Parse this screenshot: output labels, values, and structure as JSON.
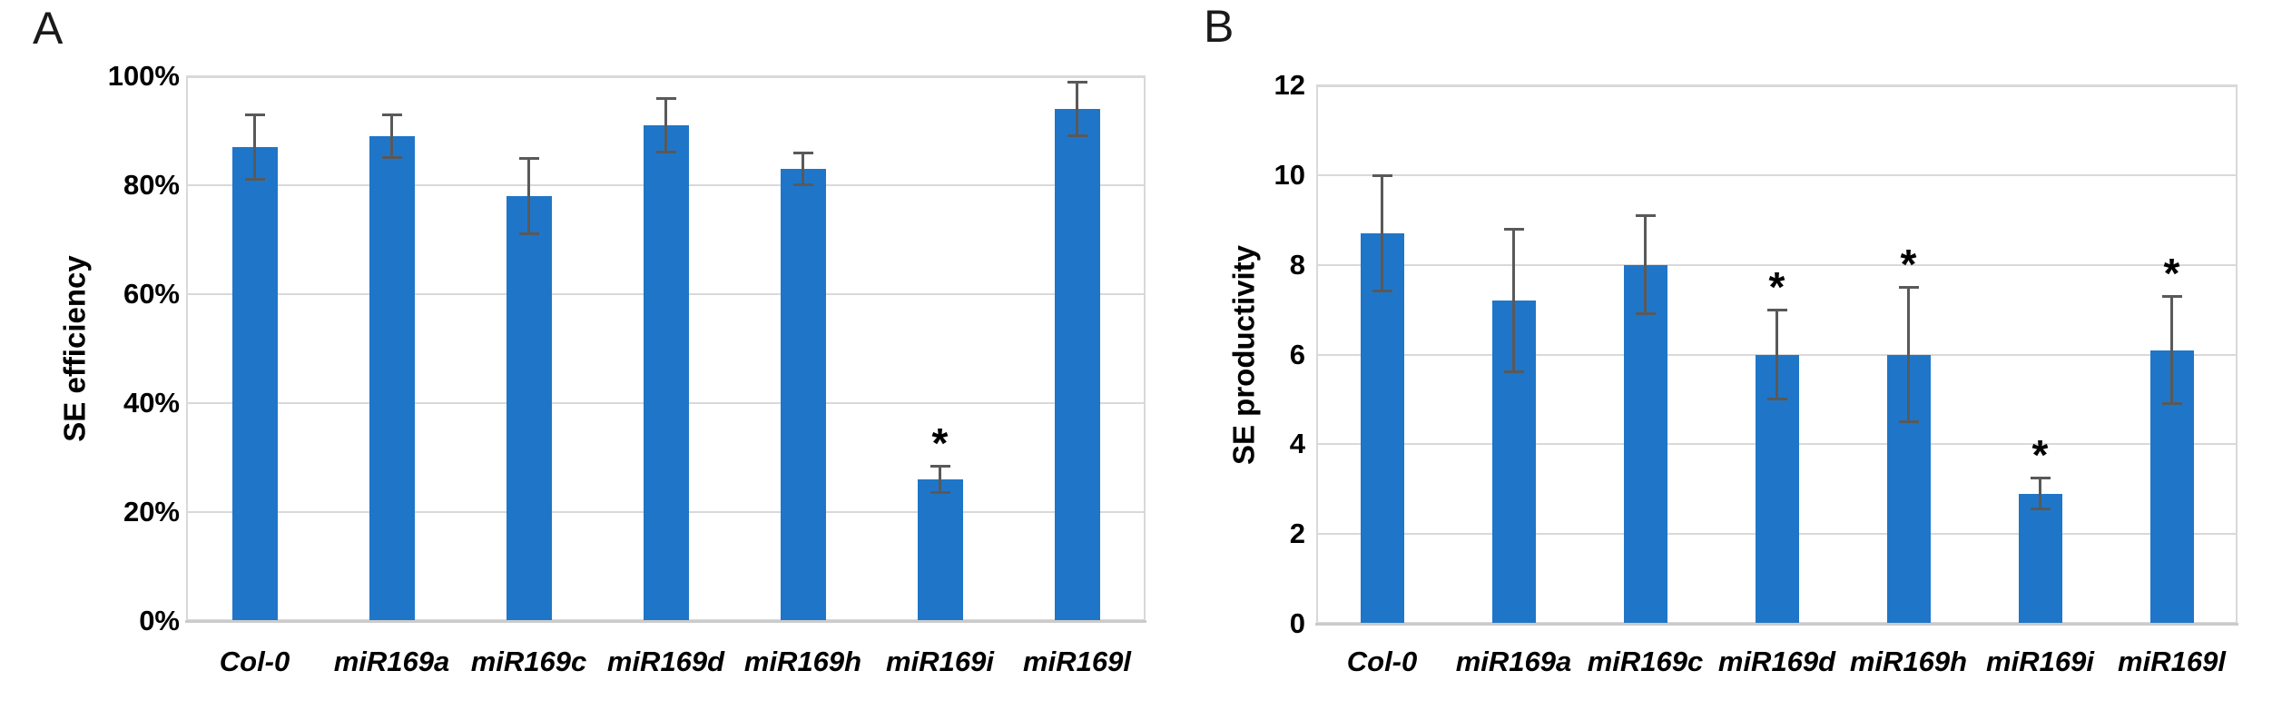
{
  "figure": {
    "background": "#FFFFFF",
    "significance_marker": "*"
  },
  "colors": {
    "bar": "#1F76C8",
    "error_bar": "#595959",
    "gridline": "#D9D9D9",
    "axis_line": "#CBCBCB",
    "text": "#000000",
    "panel_letter": "#1A1A1A"
  },
  "chart_data": [
    {
      "type": "bar",
      "panel": "A",
      "title": "",
      "ylabel": "SE efficiency",
      "xlabel": "",
      "categories": [
        "Col-0",
        "miR169a",
        "miR169c",
        "miR169d",
        "miR169h",
        "miR169i",
        "miR169l"
      ],
      "values": [
        87,
        89,
        78,
        91,
        83,
        26,
        94
      ],
      "errors": [
        6,
        4,
        7,
        5,
        3,
        2.5,
        5
      ],
      "significant": [
        false,
        false,
        false,
        false,
        false,
        true,
        false
      ],
      "ylim": [
        0,
        100
      ],
      "ytick_labels": [
        "0%",
        "20%",
        "40%",
        "60%",
        "80%",
        "100%"
      ],
      "grid": true,
      "legend": "none",
      "units": "%"
    },
    {
      "type": "bar",
      "panel": "B",
      "title": "",
      "ylabel": "SE productivity",
      "xlabel": "",
      "categories": [
        "Col-0",
        "miR169a",
        "miR169c",
        "miR169d",
        "miR169h",
        "miR169i",
        "miR169l"
      ],
      "values": [
        8.7,
        7.2,
        8.0,
        6.0,
        6.0,
        2.9,
        6.1
      ],
      "errors": [
        1.3,
        1.6,
        1.1,
        1.0,
        1.5,
        0.35,
        1.2
      ],
      "significant": [
        false,
        false,
        false,
        true,
        true,
        true,
        true
      ],
      "ylim": [
        0,
        12
      ],
      "ytick_labels": [
        "0",
        "2",
        "4",
        "6",
        "8",
        "10",
        "12"
      ],
      "grid": true,
      "legend": "none",
      "units": ""
    }
  ]
}
